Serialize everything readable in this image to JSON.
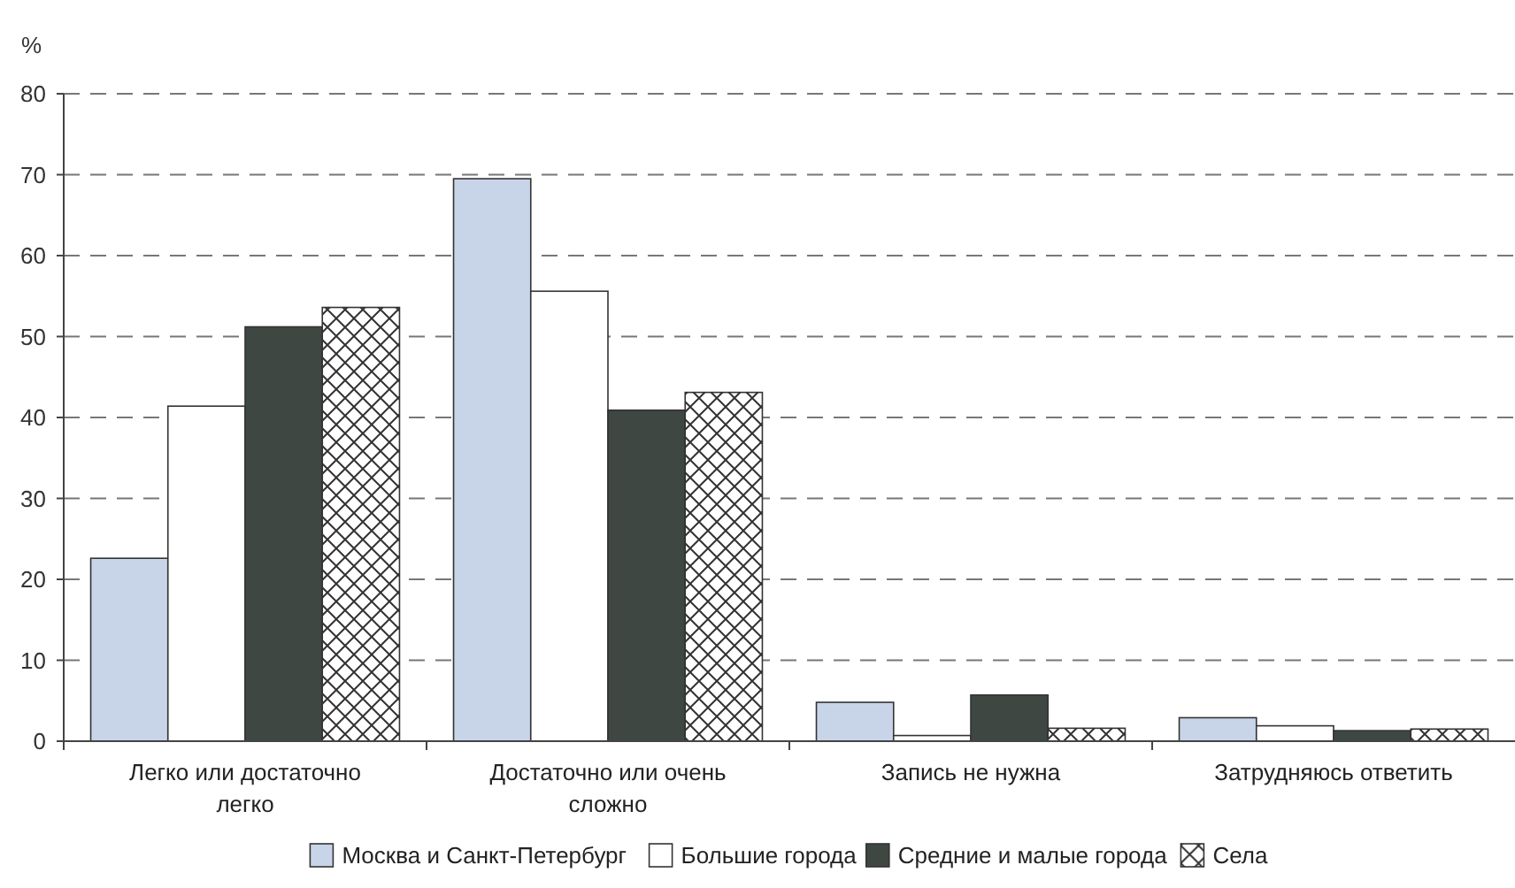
{
  "chart_data": {
    "type": "bar",
    "ylabel": "%",
    "categories": [
      "Легко или достаточно легко",
      "Достаточно или очень сложно",
      "Запись не нужна",
      "Затрудняюсь ответить"
    ],
    "series": [
      {
        "name": "Москва и Санкт-Петербург",
        "color": "#c8d5e8",
        "values": [
          22.6,
          69.5,
          4.8,
          2.9
        ]
      },
      {
        "name": "Большие города",
        "color": "#ffffff",
        "values": [
          41.4,
          55.6,
          0.7,
          1.9
        ]
      },
      {
        "name": "Средние и малые города",
        "color": "#3f4742",
        "values": [
          51.2,
          40.9,
          5.7,
          1.3
        ]
      },
      {
        "name": "Села",
        "color": "#333333",
        "values": [
          53.6,
          43.1,
          1.6,
          1.5
        ]
      }
    ],
    "ylim": [
      0,
      80
    ],
    "yticks": [
      0,
      10,
      20,
      30,
      40,
      50,
      60,
      70,
      80
    ],
    "grid": "y",
    "legend": "bottom"
  }
}
